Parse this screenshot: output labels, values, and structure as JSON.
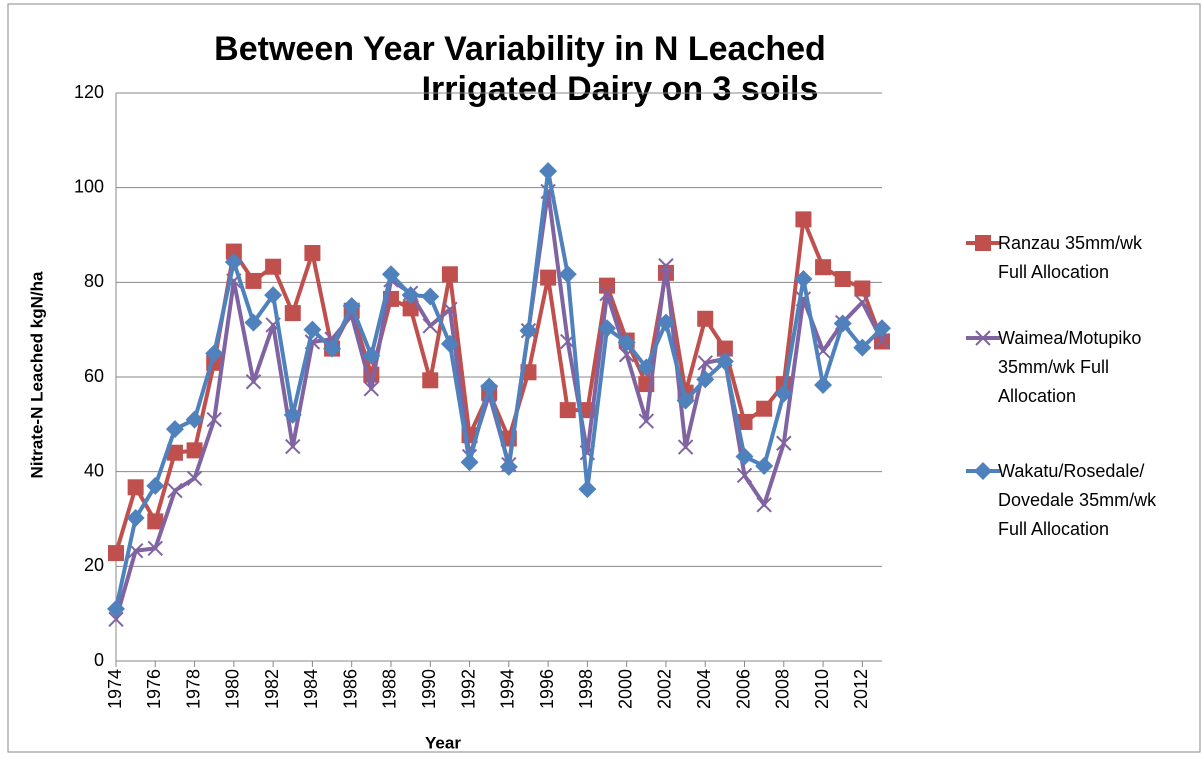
{
  "chart_data": {
    "type": "line",
    "title": [
      "Between Year Variability in N Leached",
      "Irrigated Dairy on 3 soils"
    ],
    "x_label": "Year",
    "y_label": "Nitrate-N Leached kgN/ha",
    "x": [
      1974,
      1975,
      1976,
      1977,
      1978,
      1979,
      1980,
      1981,
      1982,
      1983,
      1984,
      1985,
      1986,
      1987,
      1988,
      1989,
      1990,
      1991,
      1992,
      1993,
      1994,
      1995,
      1996,
      1997,
      1998,
      1999,
      2000,
      2001,
      2002,
      2003,
      2004,
      2005,
      2006,
      2007,
      2008,
      2009,
      2010,
      2011,
      2012,
      2013
    ],
    "xlim": [
      1974,
      2013
    ],
    "xticks": [
      1974,
      1976,
      1978,
      1980,
      1982,
      1984,
      1986,
      1988,
      1990,
      1992,
      1994,
      1996,
      1998,
      2000,
      2002,
      2004,
      2006,
      2008,
      2010,
      2012
    ],
    "ylim": [
      0,
      120
    ],
    "yticks": [
      0,
      20,
      40,
      60,
      80,
      100,
      120
    ],
    "grid": true,
    "legend": "right",
    "series": [
      {
        "name": "Ranzau 35mm/wk Full Allocation",
        "color": "#c0504d",
        "marker": "square",
        "values": [
          22.8,
          36.7,
          29.5,
          44,
          44.5,
          63,
          86.5,
          80.3,
          83.3,
          73.5,
          86.2,
          66,
          74,
          60.5,
          76.5,
          74.5,
          59.3,
          81.7,
          47.7,
          56.7,
          47,
          61,
          81,
          53,
          53,
          79.3,
          67.7,
          58.5,
          82,
          56.7,
          72.3,
          66,
          50.5,
          53.3,
          58.5,
          93.3,
          83.2,
          80.7,
          78.7,
          67.5
        ]
      },
      {
        "name": "Waimea/Motupiko 35mm/wk Full Allocation",
        "color": "#8064a2",
        "marker": "x",
        "values": [
          8.8,
          23.3,
          23.8,
          36,
          38.6,
          51,
          80.3,
          59,
          71,
          45.3,
          67.4,
          68,
          73,
          57.5,
          80.5,
          77.7,
          70.8,
          74.3,
          43.2,
          56.3,
          41.5,
          69.8,
          99.2,
          67.5,
          44,
          77.6,
          64.7,
          50.7,
          83.5,
          45.2,
          63,
          63.8,
          39.2,
          33,
          46,
          76.5,
          65.5,
          71.5,
          75.8,
          67.7
        ]
      },
      {
        "name": "Wakatu/Rosedale/ Dovedale 35mm/wk Full Allocation",
        "color": "#4f81bd",
        "marker": "diamond",
        "values": [
          11,
          30.2,
          37,
          49,
          51,
          65,
          84.3,
          71.5,
          77.3,
          52,
          70,
          66,
          75,
          64.5,
          81.7,
          77.3,
          77,
          67,
          42,
          58,
          41,
          69.8,
          103.5,
          81.7,
          36.3,
          70.3,
          67.3,
          62,
          71.5,
          55,
          59.5,
          63.3,
          43.2,
          41.2,
          56.5,
          80.7,
          58.3,
          71.3,
          66.2,
          70.3
        ]
      }
    ]
  }
}
